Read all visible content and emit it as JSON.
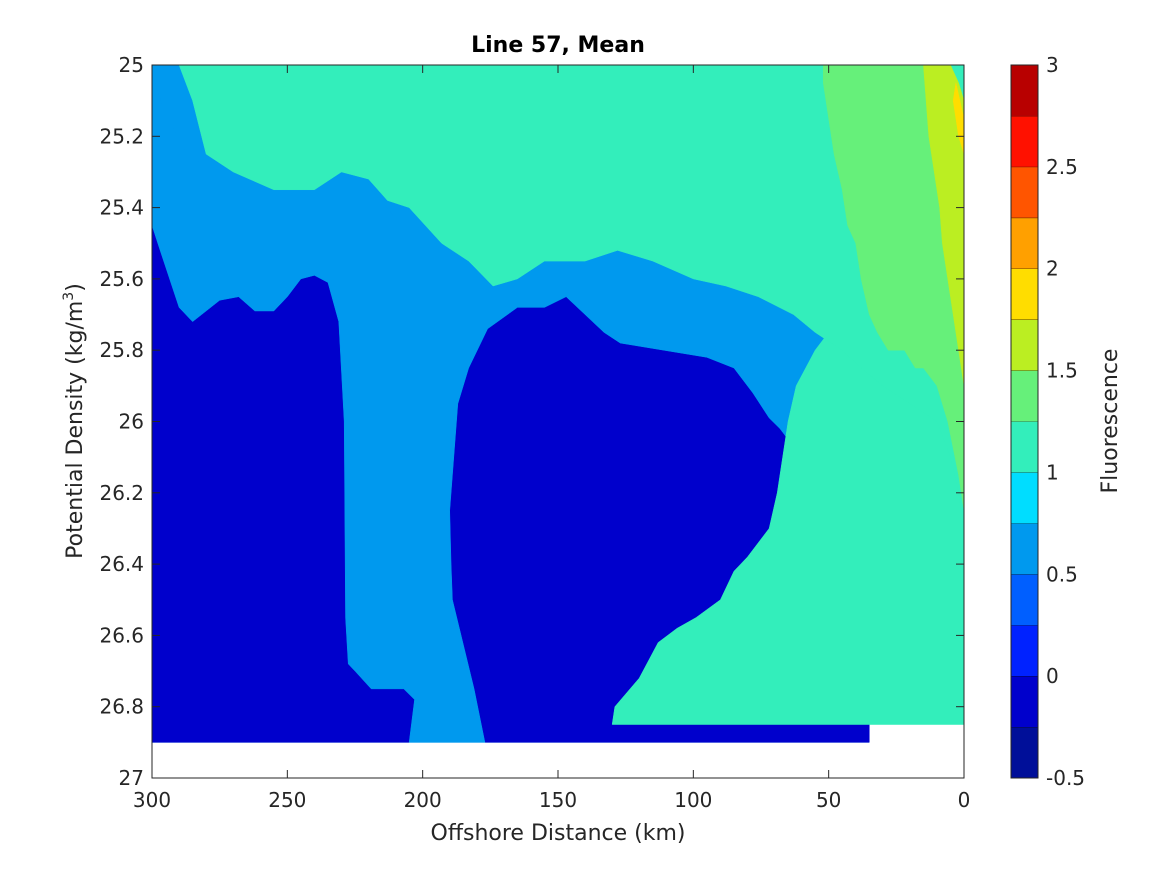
{
  "chart_data": {
    "type": "filled-contour",
    "title": "Line 57, Mean",
    "xlabel": "Offshore Distance (km)",
    "ylabel_text": "Potential Density (kg/m",
    "ylabel_superscript": "3",
    "ylabel_close": ")",
    "colorbar_label": "Fluorescence",
    "xlim": [
      300,
      0
    ],
    "ylim": [
      27,
      25
    ],
    "y_reversed": true,
    "x_reversed": true,
    "xticks": [
      300,
      250,
      200,
      150,
      100,
      50,
      0
    ],
    "xtick_labels": [
      "300",
      "250",
      "200",
      "150",
      "100",
      "50",
      "0"
    ],
    "yticks": [
      25,
      25.2,
      25.4,
      25.6,
      25.8,
      26,
      26.2,
      26.4,
      26.6,
      26.8,
      27
    ],
    "ytick_labels": [
      "25",
      "25.2",
      "25.4",
      "25.6",
      "25.8",
      "26",
      "26.2",
      "26.4",
      "26.6",
      "26.8",
      "27"
    ],
    "colorbar_range": [
      -0.5,
      3
    ],
    "colorbar_ticks": [
      -0.5,
      0,
      0.5,
      1,
      1.5,
      2,
      2.5,
      3
    ],
    "colorbar_tick_labels": [
      "-0.5",
      "0",
      "0.5",
      "1",
      "1.5",
      "2",
      "2.5",
      "3"
    ],
    "colormap": "jet",
    "contour_levels": [
      -0.5,
      -0.25,
      0,
      0.25,
      0.5,
      0.75,
      1,
      1.25,
      1.5,
      1.75,
      2,
      2.25,
      2.5,
      2.75,
      3
    ],
    "level_colors": [
      "#000f99",
      "#0000cc",
      "#0022ff",
      "#005fff",
      "#0099ee",
      "#00ddff",
      "#33eebb",
      "#66f07a",
      "#bbee22",
      "#ffdd00",
      "#ffa000",
      "#ff5500",
      "#ff1100",
      "#b80000"
    ],
    "regions": [
      {
        "level": 0,
        "points": [
          [
            300,
            25.45
          ],
          [
            297,
            25.52
          ],
          [
            290,
            25.68
          ],
          [
            285,
            25.72
          ],
          [
            275,
            25.66
          ],
          [
            268,
            25.65
          ],
          [
            262,
            25.69
          ],
          [
            255,
            25.69
          ],
          [
            250,
            25.65
          ],
          [
            245,
            25.6
          ],
          [
            240,
            25.59
          ],
          [
            235,
            25.61
          ],
          [
            231,
            25.72
          ],
          [
            229,
            26.0
          ],
          [
            228.5,
            26.55
          ],
          [
            227.5,
            26.68
          ],
          [
            225,
            26.7
          ],
          [
            219,
            26.75
          ],
          [
            207,
            26.75
          ],
          [
            203,
            26.78
          ],
          [
            205,
            26.9
          ],
          [
            300,
            26.9
          ]
        ]
      },
      {
        "level": 0,
        "points": [
          [
            190,
            26.25
          ],
          [
            187,
            25.95
          ],
          [
            183,
            25.85
          ],
          [
            176,
            25.74
          ],
          [
            165,
            25.68
          ],
          [
            155,
            25.68
          ],
          [
            147,
            25.65
          ],
          [
            133,
            25.75
          ],
          [
            127,
            25.78
          ],
          [
            111,
            25.8
          ],
          [
            95,
            25.82
          ],
          [
            85,
            25.85
          ],
          [
            78,
            25.92
          ],
          [
            72,
            25.99
          ],
          [
            68,
            26.02
          ],
          [
            60,
            26.1
          ],
          [
            53,
            26.2
          ],
          [
            45,
            26.35
          ],
          [
            37,
            26.55
          ],
          [
            31,
            26.6
          ],
          [
            31,
            26.73
          ],
          [
            35,
            26.84
          ],
          [
            35,
            26.9
          ],
          [
            177,
            26.9
          ],
          [
            181,
            26.75
          ],
          [
            189,
            26.5
          ],
          [
            189.5,
            26.4
          ]
        ]
      },
      {
        "level": 1,
        "points": [
          [
            198,
            26.19
          ],
          [
            193,
            26.19
          ],
          [
            192,
            26.35
          ],
          [
            194,
            26.4
          ],
          [
            198,
            26.38
          ]
        ]
      },
      {
        "level": 3,
        "points": [
          [
            300,
            25.02
          ],
          [
            296,
            25.12
          ],
          [
            292,
            25.18
          ],
          [
            285,
            25.28
          ],
          [
            272,
            25.22
          ],
          [
            262,
            25.2
          ],
          [
            244,
            25.22
          ],
          [
            225,
            25.25
          ],
          [
            219,
            25.35
          ],
          [
            211,
            25.42
          ],
          [
            193,
            25.42
          ],
          [
            183,
            25.37
          ],
          [
            168,
            25.35
          ],
          [
            155,
            25.35
          ],
          [
            146,
            25.32
          ],
          [
            136,
            25.3
          ],
          [
            128,
            25.32
          ],
          [
            122,
            25.33
          ],
          [
            111,
            25.47
          ],
          [
            105,
            25.55
          ],
          [
            95,
            25.6
          ],
          [
            83,
            25.6
          ],
          [
            71,
            25.62
          ],
          [
            63,
            25.67
          ],
          [
            47,
            25.78
          ],
          [
            40,
            25.86
          ],
          [
            31,
            26.0
          ],
          [
            23,
            26.04
          ],
          [
            16,
            26.04
          ],
          [
            9,
            26.1
          ],
          [
            5,
            26.2
          ],
          [
            1,
            26.35
          ],
          [
            0,
            26.4
          ],
          [
            8,
            26.5
          ],
          [
            12,
            26.45
          ],
          [
            17,
            26.4
          ],
          [
            22,
            26.4
          ],
          [
            30,
            26.55
          ],
          [
            37,
            26.55
          ],
          [
            45,
            26.35
          ],
          [
            53,
            26.2
          ],
          [
            60,
            26.1
          ],
          [
            68,
            26.02
          ],
          [
            72,
            25.99
          ],
          [
            78,
            25.92
          ],
          [
            85,
            25.85
          ],
          [
            95,
            25.82
          ],
          [
            111,
            25.8
          ],
          [
            127,
            25.78
          ],
          [
            133,
            25.75
          ],
          [
            147,
            25.65
          ],
          [
            155,
            25.68
          ],
          [
            165,
            25.68
          ],
          [
            176,
            25.74
          ],
          [
            183,
            25.85
          ],
          [
            187,
            25.95
          ],
          [
            190,
            26.25
          ],
          [
            189.5,
            26.4
          ],
          [
            189,
            26.5
          ],
          [
            181,
            26.75
          ],
          [
            177,
            26.9
          ],
          [
            205,
            26.9
          ],
          [
            203,
            26.78
          ],
          [
            207,
            26.75
          ],
          [
            219,
            26.75
          ],
          [
            225,
            26.7
          ],
          [
            227.5,
            26.68
          ],
          [
            228.5,
            26.55
          ],
          [
            229,
            26.0
          ],
          [
            231,
            25.72
          ],
          [
            235,
            25.61
          ],
          [
            240,
            25.59
          ],
          [
            245,
            25.6
          ],
          [
            250,
            25.65
          ],
          [
            255,
            25.69
          ],
          [
            262,
            25.69
          ],
          [
            268,
            25.65
          ],
          [
            275,
            25.66
          ],
          [
            285,
            25.72
          ],
          [
            290,
            25.68
          ],
          [
            297,
            25.52
          ],
          [
            300,
            25.45
          ]
        ]
      },
      {
        "level": 4,
        "points": [
          [
            43,
            25.58
          ],
          [
            41,
            25.7
          ],
          [
            37,
            25.7
          ],
          [
            40,
            25.57
          ]
        ]
      },
      {
        "level": 4,
        "points": [
          [
            28,
            26.02
          ],
          [
            29,
            25.98
          ],
          [
            30,
            26.0
          ]
        ]
      },
      {
        "level": 5,
        "points": [
          [
            0,
            25.2
          ],
          [
            4,
            25.15
          ],
          [
            10,
            25.0
          ],
          [
            23,
            25.0
          ],
          [
            23,
            25.2
          ],
          [
            25,
            25.3
          ],
          [
            30,
            25.4
          ],
          [
            35,
            25.5
          ],
          [
            41,
            25.55
          ],
          [
            43,
            25.6
          ],
          [
            45,
            25.7
          ],
          [
            50,
            25.75
          ],
          [
            55,
            25.8
          ],
          [
            62,
            25.9
          ],
          [
            65,
            26.0
          ],
          [
            66,
            26.05
          ],
          [
            69,
            26.2
          ],
          [
            72,
            26.3
          ],
          [
            80,
            26.38
          ],
          [
            85,
            26.42
          ],
          [
            90,
            26.5
          ],
          [
            99,
            26.55
          ],
          [
            106,
            26.58
          ],
          [
            113,
            26.62
          ],
          [
            120,
            26.72
          ],
          [
            129,
            26.8
          ],
          [
            130,
            26.85
          ],
          [
            0,
            26.85
          ]
        ]
      },
      {
        "level": 5,
        "points": [
          [
            300,
            25.0
          ],
          [
            290,
            25.0
          ],
          [
            285,
            25.1
          ],
          [
            280,
            25.25
          ],
          [
            270,
            25.3
          ],
          [
            255,
            25.35
          ],
          [
            240,
            25.35
          ],
          [
            230,
            25.3
          ],
          [
            220,
            25.32
          ],
          [
            213,
            25.38
          ],
          [
            205,
            25.4
          ],
          [
            193,
            25.5
          ],
          [
            183,
            25.55
          ],
          [
            174,
            25.62
          ],
          [
            165,
            25.6
          ],
          [
            155,
            25.55
          ],
          [
            140,
            25.55
          ],
          [
            128,
            25.52
          ],
          [
            115,
            25.55
          ],
          [
            100,
            25.6
          ],
          [
            88,
            25.62
          ],
          [
            76,
            25.65
          ],
          [
            63,
            25.7
          ],
          [
            55,
            25.75
          ],
          [
            45,
            25.8
          ],
          [
            38,
            25.85
          ],
          [
            30,
            25.9
          ],
          [
            20,
            25.95
          ],
          [
            10,
            26.0
          ],
          [
            5,
            26.1
          ],
          [
            2,
            26.2
          ],
          [
            0,
            26.3
          ],
          [
            0,
            25.0
          ]
        ]
      },
      {
        "level": 6,
        "points": [
          [
            22,
            25.0
          ],
          [
            15,
            25.0
          ],
          [
            10,
            25.0
          ],
          [
            7,
            25.0
          ],
          [
            3,
            25.1
          ],
          [
            0,
            25.2
          ],
          [
            0,
            26.25
          ],
          [
            2,
            26.15
          ],
          [
            6,
            26.0
          ],
          [
            10,
            25.9
          ],
          [
            15,
            25.85
          ],
          [
            18,
            25.85
          ],
          [
            22,
            25.8
          ],
          [
            28,
            25.8
          ],
          [
            32,
            25.75
          ],
          [
            35,
            25.7
          ],
          [
            38,
            25.6
          ],
          [
            40,
            25.5
          ],
          [
            43,
            25.45
          ],
          [
            45,
            25.35
          ],
          [
            48,
            25.25
          ],
          [
            50,
            25.15
          ],
          [
            52,
            25.05
          ],
          [
            52,
            25.0
          ]
        ]
      },
      {
        "level": 7,
        "points": [
          [
            5,
            25.0
          ],
          [
            2,
            25.05
          ],
          [
            0,
            25.1
          ],
          [
            0,
            25.9
          ],
          [
            3,
            25.75
          ],
          [
            5,
            25.65
          ],
          [
            7,
            25.55
          ],
          [
            8,
            25.5
          ],
          [
            9,
            25.4
          ],
          [
            11,
            25.3
          ],
          [
            13,
            25.2
          ],
          [
            14,
            25.1
          ],
          [
            15,
            25.0
          ]
        ]
      },
      {
        "level": 8,
        "points": [
          [
            3,
            25.05
          ],
          [
            0,
            25.15
          ],
          [
            0,
            25.25
          ],
          [
            2,
            25.2
          ],
          [
            4,
            25.1
          ]
        ]
      }
    ]
  }
}
